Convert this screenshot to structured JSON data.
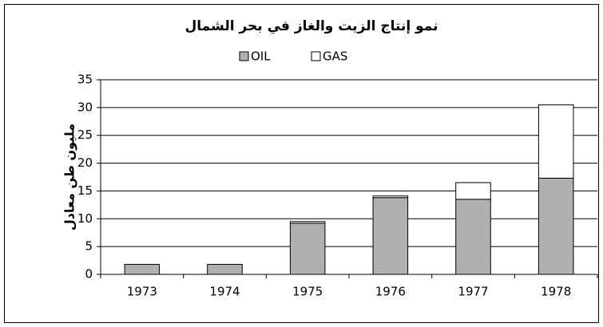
{
  "chart_data": {
    "type": "stacked_bar",
    "title": "نمو إنتاج الزيت والغاز في بحر الشمال",
    "ylabel": "مليون طن معادل",
    "categories": [
      "1973",
      "1974",
      "1975",
      "1976",
      "1977",
      "1978"
    ],
    "series": [
      {
        "name": "OIL",
        "color": "#b0b0b0",
        "values": [
          1.8,
          1.8,
          9.2,
          13.8,
          13.5,
          17.3
        ]
      },
      {
        "name": "GAS",
        "color": "#ffffff",
        "values": [
          0,
          0,
          0.3,
          0.3,
          3,
          13.2
        ]
      }
    ],
    "ylim": [
      0,
      35
    ],
    "yticks": [
      0,
      5,
      10,
      15,
      20,
      25,
      30,
      35
    ],
    "grid": true,
    "legend": "top"
  }
}
